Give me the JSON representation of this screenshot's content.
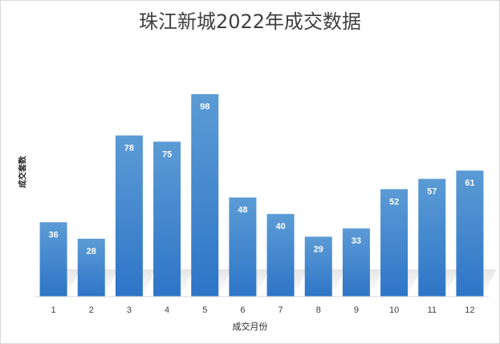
{
  "chart_data": {
    "type": "bar",
    "title": "珠江新城2022年成交数据",
    "xlabel": "成交月份",
    "ylabel": "成交套数",
    "categories": [
      "1",
      "2",
      "3",
      "4",
      "5",
      "6",
      "7",
      "8",
      "9",
      "10",
      "11",
      "12"
    ],
    "values": [
      36,
      28,
      78,
      75,
      98,
      48,
      40,
      29,
      33,
      52,
      57,
      61
    ],
    "ylim": [
      0,
      100
    ],
    "grid": false,
    "data_labels": true,
    "bar_color": "#4a8fd6",
    "bar_color_light": "#5b9bd5",
    "bar_color_dark": "#2e75c7"
  }
}
